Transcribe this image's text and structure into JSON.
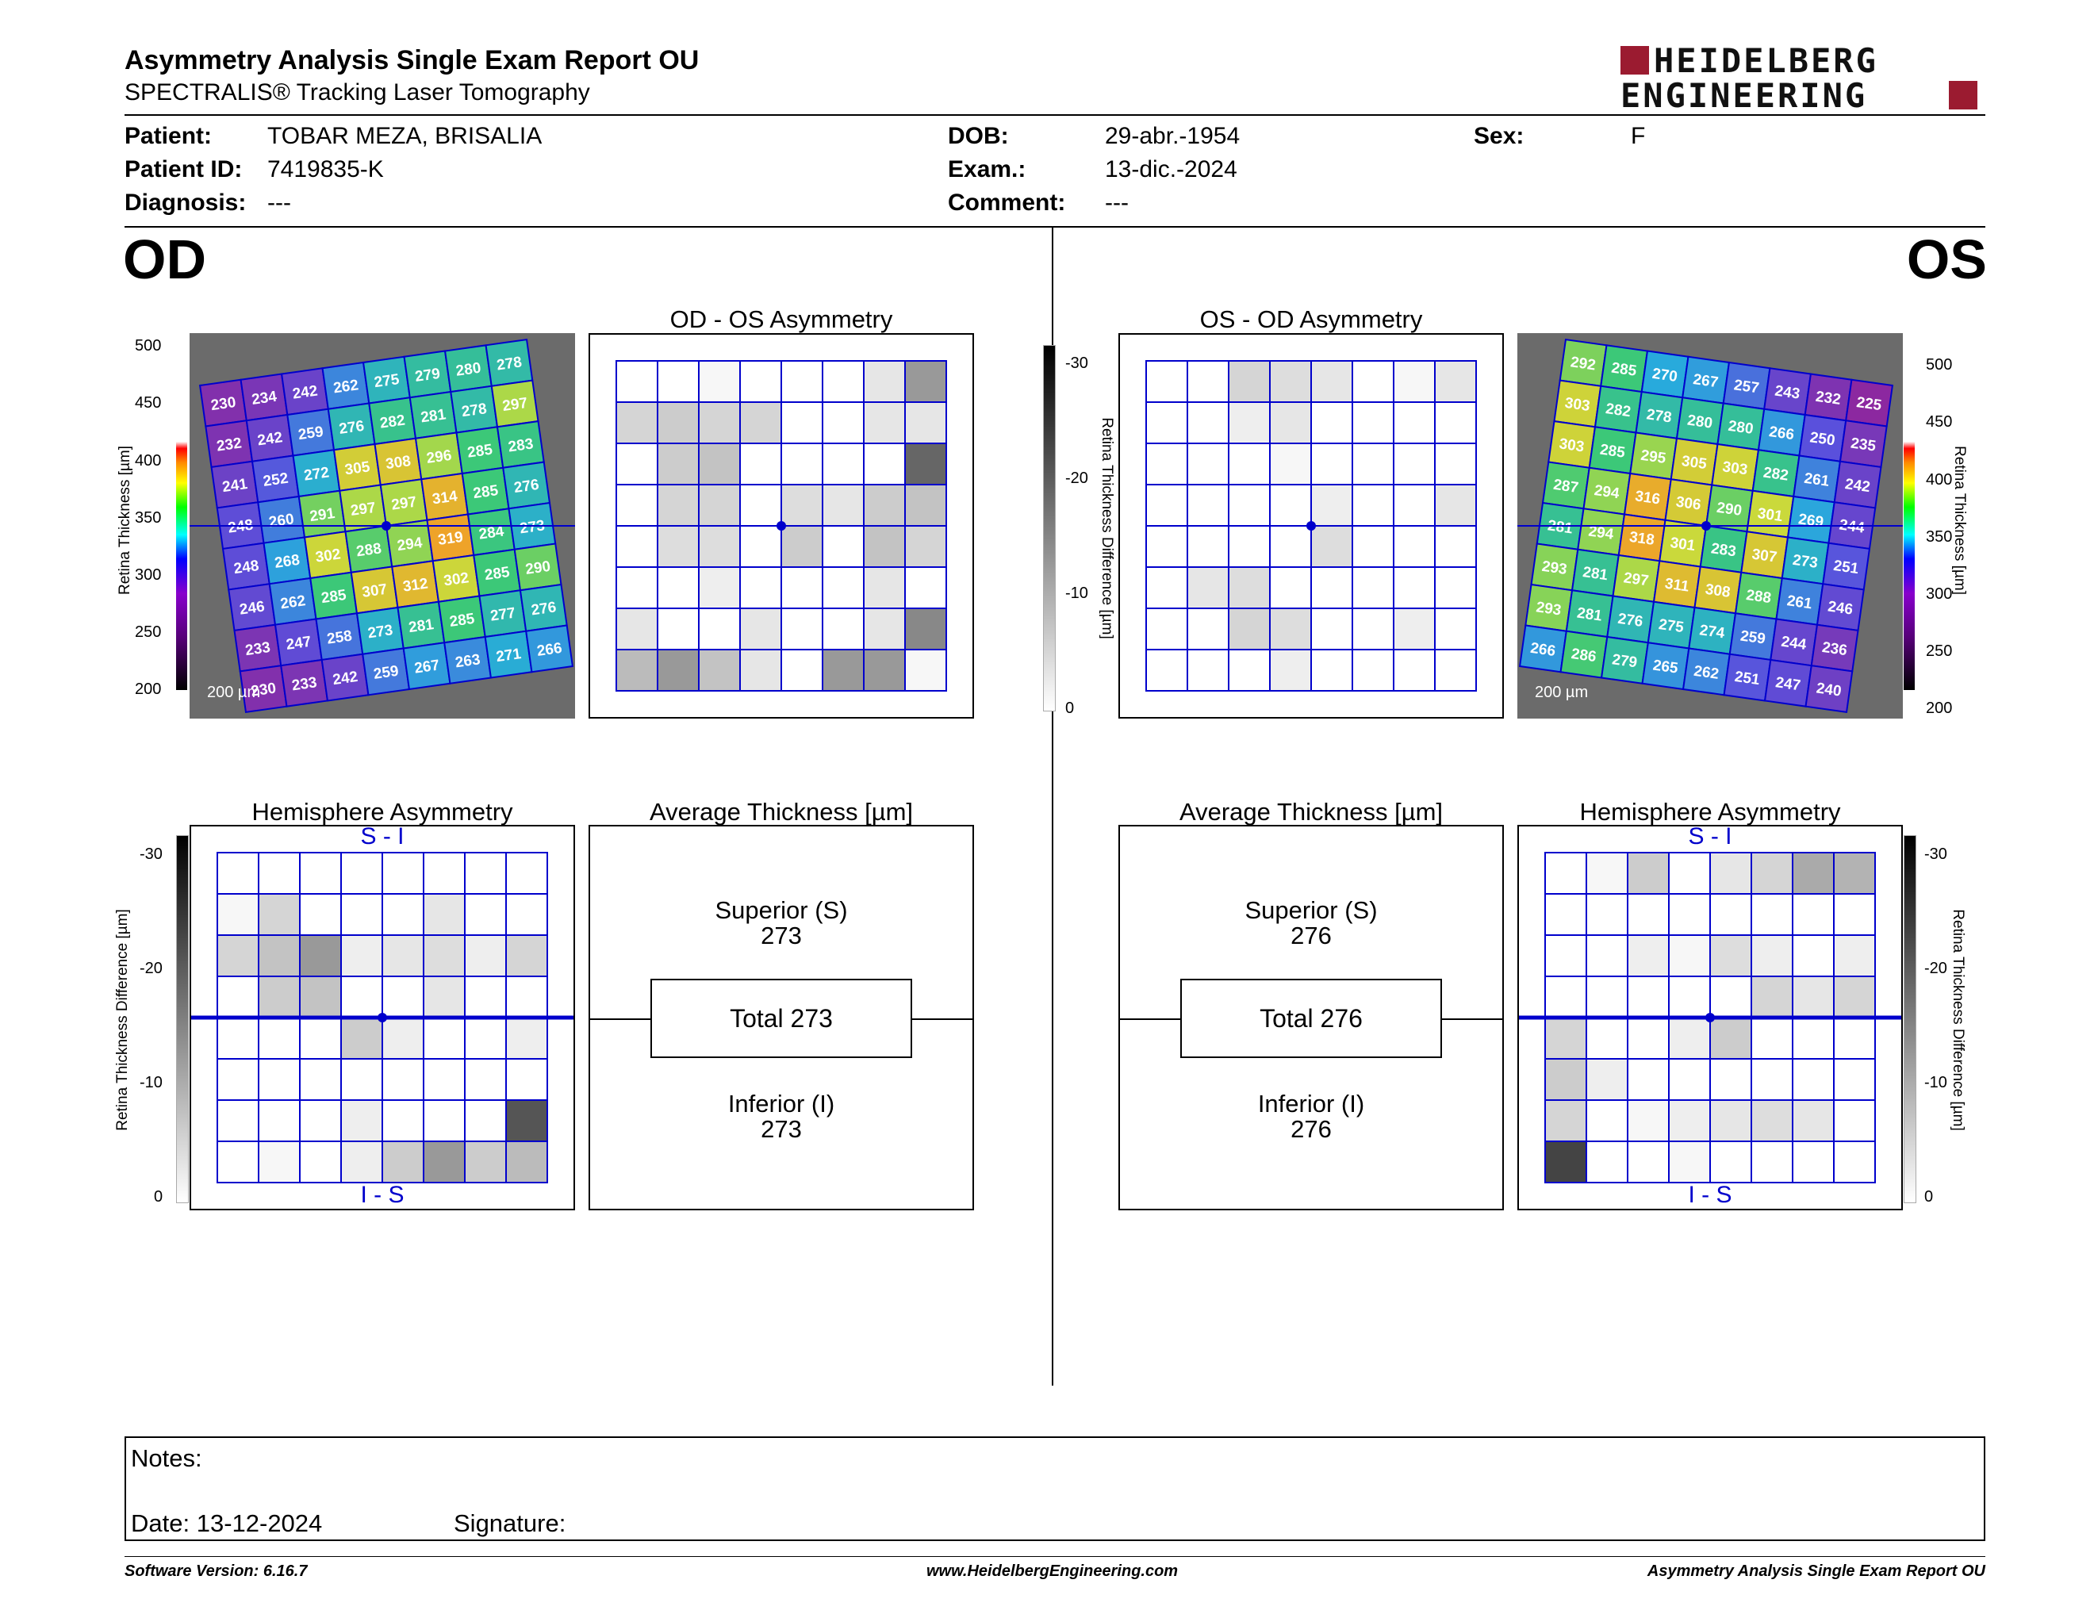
{
  "header": {
    "title": "Asymmetry Analysis Single Exam Report OU",
    "subtitle": "SPECTRALIS® Tracking Laser Tomography",
    "logo_line1": "HEIDELBERG",
    "logo_line2": "ENGINEERING",
    "brand_color": "#9b1b30"
  },
  "patient": {
    "patient_label": "Patient:",
    "patient_value": "TOBAR MEZA, BRISALIA",
    "id_label": "Patient ID:",
    "id_value": "7419835-K",
    "diag_label": "Diagnosis:",
    "diag_value": "---",
    "dob_label": "DOB:",
    "dob_value": "29-abr.-1954",
    "exam_label": "Exam.:",
    "exam_value": "13-dic.-2024",
    "comment_label": "Comment:",
    "comment_value": "---",
    "sex_label": "Sex:",
    "sex_value": "F"
  },
  "od": {
    "eye_label": "OD",
    "asym_title": "OD - OS Asymmetry",
    "hemi_title": "Hemisphere Asymmetry",
    "hemi_top": "S - I",
    "hemi_bottom": "I - S",
    "avg_title": "Average Thickness [µm]",
    "sup_label": "Superior (S)",
    "sup_value": "273",
    "total_label": "Total 273",
    "inf_label": "Inferior (I)",
    "inf_value": "273",
    "scale_label": "200 µm",
    "thickness_grid": [
      [
        230,
        234,
        242,
        262,
        275,
        279,
        280,
        278
      ],
      [
        232,
        242,
        259,
        276,
        282,
        281,
        278,
        297
      ],
      [
        241,
        252,
        272,
        305,
        308,
        296,
        285,
        283
      ],
      [
        248,
        260,
        291,
        297,
        297,
        314,
        285,
        276
      ],
      [
        248,
        268,
        302,
        288,
        294,
        319,
        284,
        273
      ],
      [
        246,
        262,
        285,
        307,
        312,
        302,
        285,
        290
      ],
      [
        233,
        247,
        258,
        273,
        281,
        285,
        277,
        276
      ],
      [
        230,
        233,
        242,
        259,
        267,
        263,
        271,
        266
      ]
    ],
    "asym_grid": [
      [
        0,
        0,
        1,
        0,
        0,
        0,
        3,
        12
      ],
      [
        5,
        6,
        5,
        5,
        0,
        0,
        3,
        3
      ],
      [
        0,
        6,
        7,
        0,
        0,
        0,
        0,
        18
      ],
      [
        0,
        5,
        5,
        0,
        4,
        3,
        6,
        7
      ],
      [
        0,
        4,
        4,
        0,
        6,
        0,
        7,
        5
      ],
      [
        0,
        0,
        2,
        0,
        0,
        0,
        3,
        0
      ],
      [
        3,
        0,
        0,
        3,
        0,
        0,
        3,
        14
      ],
      [
        8,
        12,
        7,
        3,
        0,
        12,
        12,
        1
      ]
    ],
    "hemi_grid": [
      [
        0,
        0,
        0,
        0,
        0,
        0,
        0,
        0
      ],
      [
        1,
        5,
        0,
        0,
        0,
        3,
        0,
        0
      ],
      [
        5,
        7,
        12,
        2,
        3,
        4,
        2,
        5
      ],
      [
        0,
        6,
        7,
        0,
        0,
        3,
        0,
        0
      ],
      [
        0,
        0,
        0,
        6,
        2,
        0,
        0,
        2
      ],
      [
        0,
        0,
        0,
        0,
        0,
        0,
        0,
        0
      ],
      [
        0,
        0,
        0,
        2,
        0,
        0,
        0,
        20
      ],
      [
        0,
        1,
        0,
        2,
        6,
        12,
        6,
        8
      ]
    ]
  },
  "os": {
    "eye_label": "OS",
    "asym_title": "OS - OD Asymmetry",
    "hemi_title": "Hemisphere Asymmetry",
    "hemi_top": "S - I",
    "hemi_bottom": "I - S",
    "avg_title": "Average Thickness [µm]",
    "sup_label": "Superior (S)",
    "sup_value": "276",
    "total_label": "Total 276",
    "inf_label": "Inferior (I)",
    "inf_value": "276",
    "scale_label": "200 µm",
    "thickness_grid": [
      [
        292,
        285,
        270,
        267,
        257,
        243,
        232,
        225
      ],
      [
        303,
        282,
        278,
        280,
        280,
        266,
        250,
        235
      ],
      [
        303,
        285,
        295,
        305,
        303,
        282,
        261,
        242
      ],
      [
        287,
        294,
        316,
        306,
        290,
        301,
        269,
        244
      ],
      [
        281,
        294,
        318,
        301,
        283,
        307,
        273,
        251
      ],
      [
        293,
        281,
        297,
        311,
        308,
        288,
        261,
        246
      ],
      [
        293,
        281,
        276,
        275,
        274,
        259,
        244,
        236
      ],
      [
        266,
        286,
        279,
        265,
        262,
        251,
        247,
        240
      ]
    ],
    "asym_grid": [
      [
        0,
        0,
        5,
        4,
        3,
        0,
        1,
        3
      ],
      [
        0,
        0,
        2,
        3,
        0,
        0,
        0,
        0
      ],
      [
        0,
        0,
        0,
        1,
        0,
        0,
        0,
        0
      ],
      [
        0,
        0,
        0,
        0,
        2,
        0,
        0,
        3
      ],
      [
        0,
        0,
        0,
        0,
        4,
        0,
        0,
        0
      ],
      [
        0,
        3,
        4,
        0,
        0,
        0,
        0,
        0
      ],
      [
        0,
        0,
        5,
        4,
        0,
        0,
        2,
        0
      ],
      [
        0,
        0,
        0,
        2,
        0,
        0,
        0,
        0
      ]
    ],
    "hemi_grid": [
      [
        0,
        1,
        6,
        0,
        3,
        5,
        10,
        9
      ],
      [
        0,
        0,
        0,
        0,
        0,
        0,
        0,
        0
      ],
      [
        0,
        0,
        2,
        1,
        4,
        2,
        0,
        2
      ],
      [
        0,
        0,
        0,
        0,
        0,
        5,
        3,
        5
      ],
      [
        5,
        0,
        0,
        2,
        6,
        0,
        0,
        0
      ],
      [
        6,
        2,
        0,
        0,
        0,
        0,
        0,
        0
      ],
      [
        5,
        0,
        1,
        2,
        3,
        4,
        3,
        0
      ],
      [
        22,
        0,
        0,
        1,
        0,
        0,
        0,
        0
      ]
    ]
  },
  "colorbar": {
    "thickness_label": "Retina Thickness [µm]",
    "thickness_ticks": [
      "500",
      "450",
      "400",
      "350",
      "300",
      "250",
      "200"
    ],
    "diff_label": "Retina Thickness Difference [µm]",
    "diff_ticks": [
      "-30",
      "-20",
      "-10",
      "0"
    ]
  },
  "notes": {
    "notes_label": "Notes:",
    "date_label": "Date: 13-12-2024",
    "signature_label": "Signature:"
  },
  "footer": {
    "software": "Software Version: 6.16.7",
    "website": "www.HeidelbergEngineering.com",
    "report": "Asymmetry Analysis Single Exam Report OU"
  }
}
